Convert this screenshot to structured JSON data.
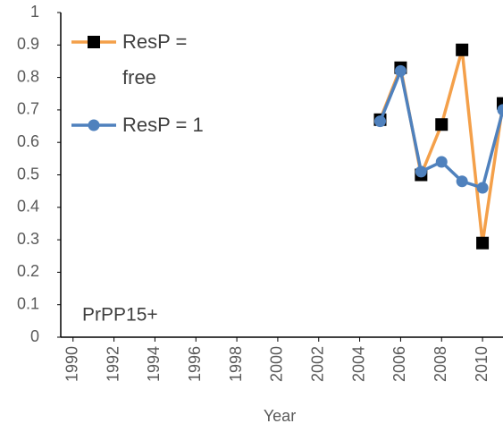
{
  "chart_data": {
    "type": "line",
    "x": [
      2005,
      2006,
      2007,
      2008,
      2009,
      2010,
      2011
    ],
    "series": [
      {
        "name": "ResP = free",
        "color": "#f4a04a",
        "marker": "square",
        "marker_color": "#000000",
        "values": [
          0.67,
          0.83,
          0.5,
          0.655,
          0.885,
          0.29,
          0.72
        ]
      },
      {
        "name": "ResP = 1",
        "color": "#4f81bd",
        "marker": "circle",
        "marker_color": "#4f81bd",
        "values": [
          0.665,
          0.82,
          0.51,
          0.54,
          0.48,
          0.46,
          0.7
        ]
      }
    ],
    "xlabel": "Year",
    "annotation": "PrPP15+",
    "xlim": [
      1989.4,
      2011
    ],
    "xticks": [
      1990,
      1992,
      1994,
      1996,
      1998,
      2000,
      2002,
      2004,
      2006,
      2008,
      2010
    ],
    "ylim": [
      0,
      1
    ],
    "yticks": [
      0,
      0.1,
      0.2,
      0.3,
      0.4,
      0.5,
      0.6,
      0.7,
      0.8,
      0.9,
      1
    ],
    "legend": "upper left",
    "grid": false
  }
}
